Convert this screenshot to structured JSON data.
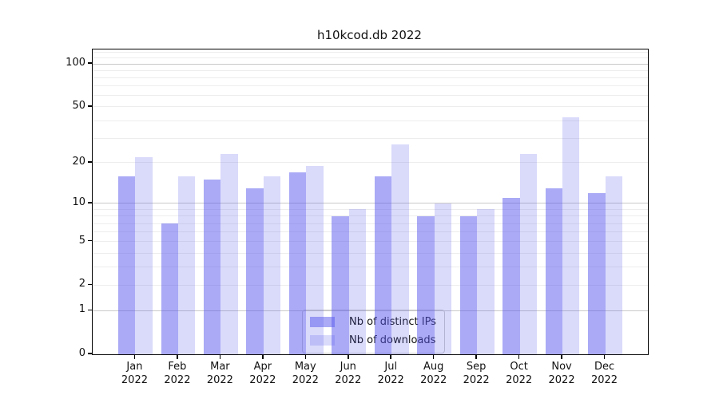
{
  "chart_data": {
    "type": "bar",
    "title": "h10kcod.db 2022",
    "scale": "log1p",
    "categories": [
      "Jan",
      "Feb",
      "Mar",
      "Apr",
      "May",
      "Jun",
      "Jul",
      "Aug",
      "Sep",
      "Oct",
      "Nov",
      "Dec"
    ],
    "category_year": "2022",
    "series": [
      {
        "name": "Nb of distinct IPs",
        "color": "rgba(85,85,238,0.5)",
        "values": [
          16,
          7,
          15,
          13,
          17,
          8,
          16,
          8,
          8,
          11,
          13,
          12
        ]
      },
      {
        "name": "Nb of downloads",
        "color": "rgba(85,85,238,0.22)",
        "values": [
          22,
          16,
          23,
          16,
          19,
          9,
          27,
          10,
          9,
          23,
          42,
          16
        ]
      }
    ],
    "y_ticks": [
      0,
      1,
      2,
      5,
      10,
      20,
      50,
      100
    ],
    "major_gridlines": [
      1,
      10,
      100
    ],
    "minor_gridlines": [
      2,
      3,
      4,
      5,
      6,
      7,
      8,
      9,
      20,
      30,
      40,
      50,
      60,
      70,
      80,
      90,
      110,
      120
    ],
    "ylim": [
      0,
      126
    ],
    "xlabel": "",
    "ylabel": "",
    "grid": true,
    "legend_position": "lower center"
  },
  "colors": {
    "bar_ips": "rgba(85,85,238,0.5)",
    "bar_downloads": "rgba(85,85,238,0.22)",
    "major_grid": "#c9c9c9",
    "minor_grid": "#ededed",
    "spine": "#000000",
    "text": "#111111",
    "legend_border": "#cccccc"
  }
}
